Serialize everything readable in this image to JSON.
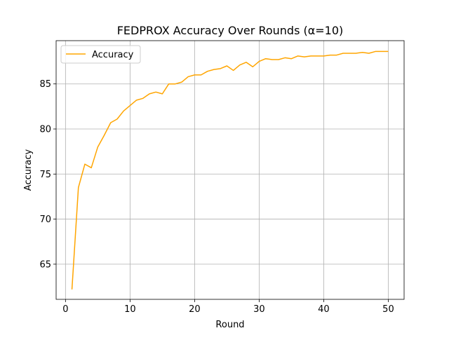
{
  "chart_data": {
    "type": "line",
    "title": "FEDPROX Accuracy Over Rounds (α=10)",
    "xlabel": "Round",
    "ylabel": "Accuracy",
    "xlim": [
      -1.45,
      52.45
    ],
    "ylim": [
      61.1,
      89.8
    ],
    "xticks": [
      0,
      10,
      20,
      30,
      40,
      50
    ],
    "yticks": [
      65,
      70,
      75,
      80,
      85
    ],
    "grid": true,
    "legend_position": "top-left",
    "series": [
      {
        "name": "Accuracy",
        "color": "#ffa500",
        "x": [
          1,
          2,
          3,
          4,
          5,
          6,
          7,
          8,
          9,
          10,
          11,
          12,
          13,
          14,
          15,
          16,
          17,
          18,
          19,
          20,
          21,
          22,
          23,
          24,
          25,
          26,
          27,
          28,
          29,
          30,
          31,
          32,
          33,
          34,
          35,
          36,
          37,
          38,
          39,
          40,
          41,
          42,
          43,
          44,
          45,
          46,
          47,
          48,
          49,
          50
        ],
        "y": [
          62.2,
          73.5,
          76.1,
          75.7,
          78.0,
          79.3,
          80.7,
          81.1,
          82.0,
          82.6,
          83.2,
          83.4,
          83.9,
          84.1,
          83.9,
          85.0,
          85.0,
          85.2,
          85.8,
          86.0,
          86.0,
          86.4,
          86.6,
          86.7,
          87.0,
          86.5,
          87.1,
          87.4,
          86.9,
          87.5,
          87.8,
          87.7,
          87.7,
          87.9,
          87.8,
          88.1,
          88.0,
          88.1,
          88.1,
          88.1,
          88.2,
          88.2,
          88.4,
          88.4,
          88.4,
          88.5,
          88.4,
          88.6,
          88.6,
          88.6
        ]
      }
    ]
  }
}
